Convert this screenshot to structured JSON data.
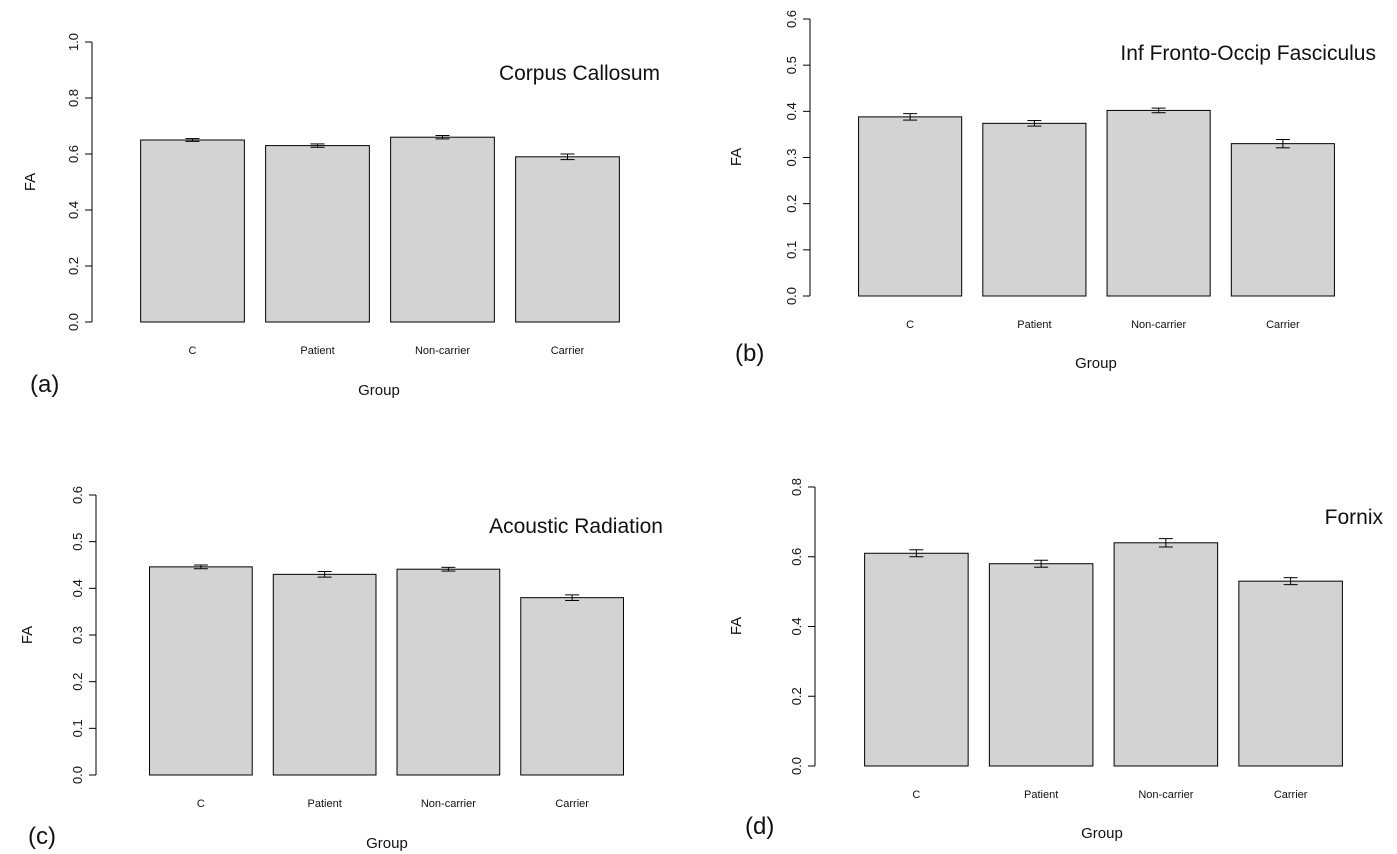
{
  "chart_data": [
    {
      "type": "bar",
      "panel_label": "(a)",
      "title": "Corpus Callosum",
      "xlabel": "Group",
      "ylabel": "FA",
      "categories": [
        "C",
        "Patient",
        "Non-carrier",
        "Carrier"
      ],
      "values": [
        0.65,
        0.63,
        0.66,
        0.59
      ],
      "error": [
        0.005,
        0.006,
        0.006,
        0.01
      ],
      "ylim": [
        0,
        1.0
      ],
      "yticks": [
        "0.0",
        "0.2",
        "0.4",
        "0.6",
        "0.8",
        "1.0"
      ],
      "grid": false,
      "bar_color": "#d3d3d3"
    },
    {
      "type": "bar",
      "panel_label": "(b)",
      "title": "Inf Fronto-Occip Fasciculus",
      "xlabel": "Group",
      "ylabel": "FA",
      "categories": [
        "C",
        "Patient",
        "Non-carrier",
        "Carrier"
      ],
      "values": [
        0.388,
        0.374,
        0.402,
        0.33
      ],
      "error": [
        0.007,
        0.006,
        0.005,
        0.009
      ],
      "ylim": [
        0,
        0.6
      ],
      "yticks": [
        "0.0",
        "0.1",
        "0.2",
        "0.3",
        "0.4",
        "0.5",
        "0.6"
      ],
      "grid": false,
      "bar_color": "#d3d3d3"
    },
    {
      "type": "bar",
      "panel_label": "(c)",
      "title": "Acoustic Radiation",
      "xlabel": "Group",
      "ylabel": "FA",
      "categories": [
        "C",
        "Patient",
        "Non-carrier",
        "Carrier"
      ],
      "values": [
        0.446,
        0.43,
        0.441,
        0.38
      ],
      "error": [
        0.004,
        0.006,
        0.004,
        0.006
      ],
      "ylim": [
        0,
        0.6
      ],
      "yticks": [
        "0.0",
        "0.1",
        "0.2",
        "0.3",
        "0.4",
        "0.5",
        "0.6"
      ],
      "grid": false,
      "bar_color": "#d3d3d3"
    },
    {
      "type": "bar",
      "panel_label": "(d)",
      "title": "Fornix",
      "xlabel": "Group",
      "ylabel": "FA",
      "categories": [
        "C",
        "Patient",
        "Non-carrier",
        "Carrier"
      ],
      "values": [
        0.61,
        0.58,
        0.64,
        0.53
      ],
      "error": [
        0.01,
        0.01,
        0.012,
        0.01
      ],
      "ylim": [
        0,
        0.8
      ],
      "yticks": [
        "0.0",
        "0.2",
        "0.4",
        "0.6",
        "0.8"
      ],
      "grid": false,
      "bar_color": "#d3d3d3"
    }
  ]
}
